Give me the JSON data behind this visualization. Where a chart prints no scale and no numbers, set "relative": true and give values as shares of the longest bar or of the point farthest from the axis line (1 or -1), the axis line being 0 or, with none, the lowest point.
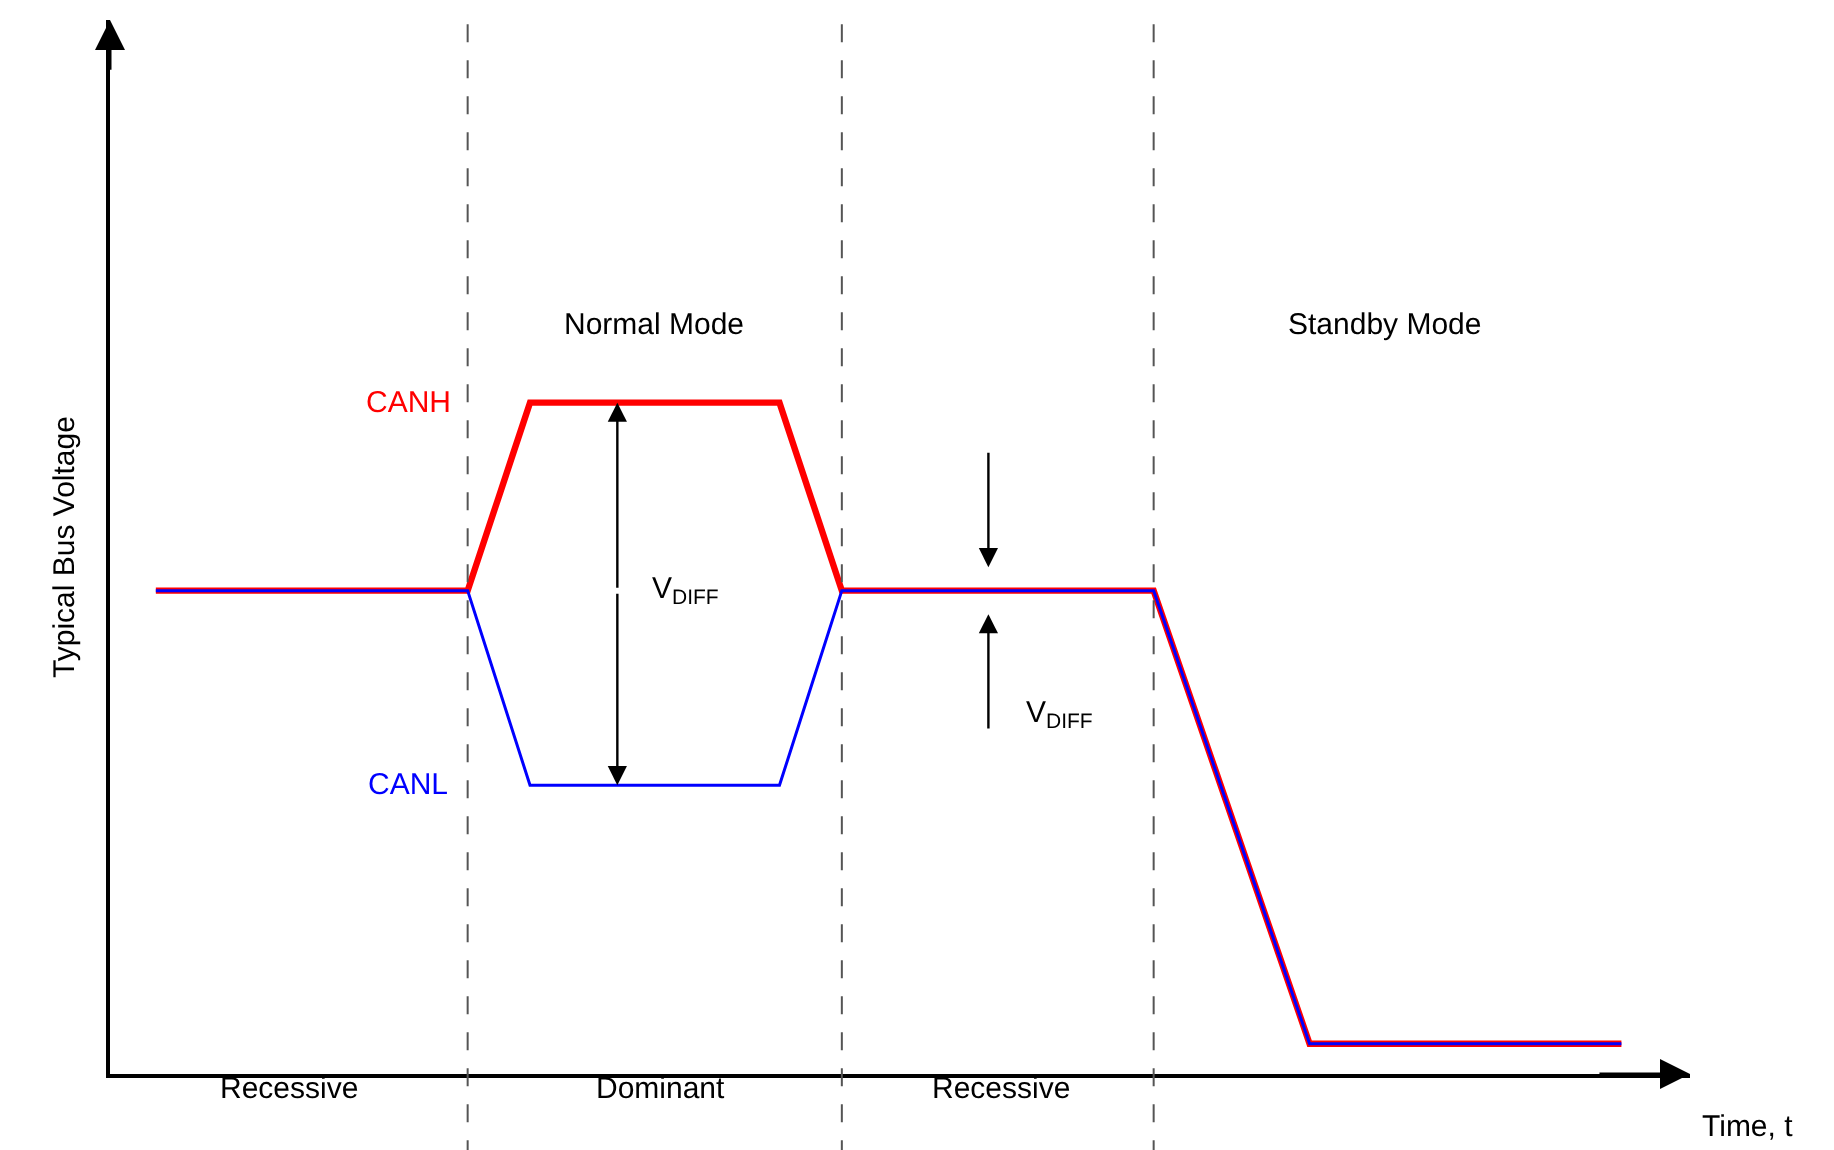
{
  "chart_data": {
    "type": "line",
    "relative": true,
    "xlabel": "Time, t",
    "ylabel": "Typical Bus Voltage",
    "grid": "x",
    "legend": false,
    "marker": "none",
    "categories": [
      null,
      null,
      null,
      null,
      null,
      null,
      null,
      null,
      null,
      null,
      null,
      null,
      null,
      null,
      null,
      null,
      null,
      null,
      null,
      null,
      null,
      null,
      null,
      null,
      null,
      null,
      null,
      null,
      null,
      null,
      null,
      null,
      null,
      null,
      null,
      null,
      null,
      null,
      null,
      null,
      null,
      null,
      null,
      null,
      null,
      null,
      null,
      null
    ],
    "series": [
      {
        "name": "CANL",
        "color": "#0000ff",
        "values": [
          0.72,
          0.72,
          0.72,
          0.72,
          0.72,
          0.72,
          0.72,
          0.72,
          0.72,
          0.72,
          0.72,
          0.575,
          0.43,
          0.43,
          0.43,
          0.43,
          0.43,
          0.43,
          0.43,
          0.43,
          0.43,
          0.575,
          0.72,
          0.72,
          0.72,
          0.72,
          0.72,
          0.72,
          0.72,
          0.72,
          0.72,
          0.72,
          0.72,
          0.585,
          0.45,
          0.315,
          0.18,
          0.045,
          0.045,
          0.045,
          0.045,
          0.045,
          0.045,
          0.045,
          0.045,
          0.045,
          0.045,
          0.045
        ]
      },
      {
        "name": "CANH",
        "color": "#ff0000",
        "values": [
          0.72,
          0.72,
          0.72,
          0.72,
          0.72,
          0.72,
          0.72,
          0.72,
          0.72,
          0.72,
          0.72,
          0.86,
          1,
          1,
          1,
          1,
          1,
          1,
          1,
          1,
          1,
          0.86,
          0.72,
          0.72,
          0.72,
          0.72,
          0.72,
          0.72,
          0.72,
          0.72,
          0.72,
          0.72,
          0.72,
          0.585,
          0.45,
          0.315,
          0.18,
          0.045,
          0.045,
          0.045,
          0.045,
          0.045,
          0.045,
          0.045,
          0.045,
          0.045,
          0.045,
          0.045
        ]
      }
    ],
    "annotations": [
      "Normal Mode",
      "Standby Mode",
      "Recessive",
      "Dominant",
      "Recessive",
      "V$_{DIFF}$",
      "V$_{DIFF}$"
    ]
  }
}
